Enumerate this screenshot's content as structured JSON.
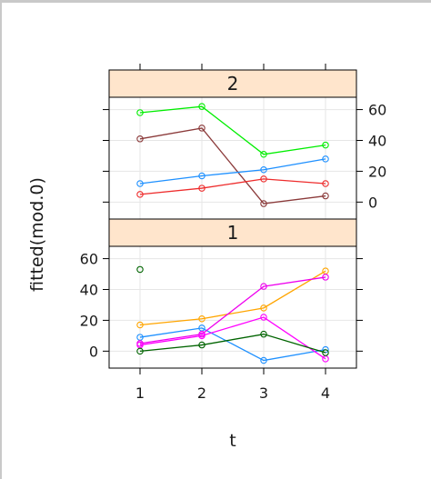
{
  "chart_data": {
    "type": "line",
    "xlabel": "t",
    "ylabel": "fitted(mod.0)",
    "x": [
      1,
      2,
      3,
      4
    ],
    "xticks": [
      "1",
      "2",
      "3",
      "4"
    ],
    "yticks": [
      "0",
      "20",
      "40",
      "60"
    ],
    "ylim": [
      -11,
      68
    ],
    "grid": true,
    "panels": [
      {
        "strip": "2",
        "position": "top",
        "series": [
          {
            "color": "#00ee00",
            "values": [
              58,
              62,
              31,
              37
            ]
          },
          {
            "color": "#8b3a3a",
            "values": [
              41,
              48,
              -1,
              4
            ]
          },
          {
            "color": "#1e90ff",
            "values": [
              12,
              17,
              21,
              28
            ]
          },
          {
            "color": "#ee2c2c",
            "values": [
              5,
              9,
              15,
              12
            ]
          }
        ]
      },
      {
        "strip": "1",
        "position": "bottom",
        "series": [
          {
            "color": "#006400",
            "values": [
              53,
              null,
              null,
              null
            ]
          },
          {
            "color": "#ffa500",
            "values": [
              17,
              21,
              28,
              52
            ]
          },
          {
            "color": "#1e90ff",
            "values": [
              9,
              15,
              -6,
              1
            ]
          },
          {
            "color": "#ee00ee",
            "values": [
              5,
              11,
              42,
              48
            ]
          },
          {
            "color": "#ff00ff",
            "values": [
              4,
              10,
              22,
              -5
            ]
          },
          {
            "color": "#006400",
            "values": [
              0,
              4,
              11,
              -1
            ]
          }
        ]
      }
    ]
  }
}
